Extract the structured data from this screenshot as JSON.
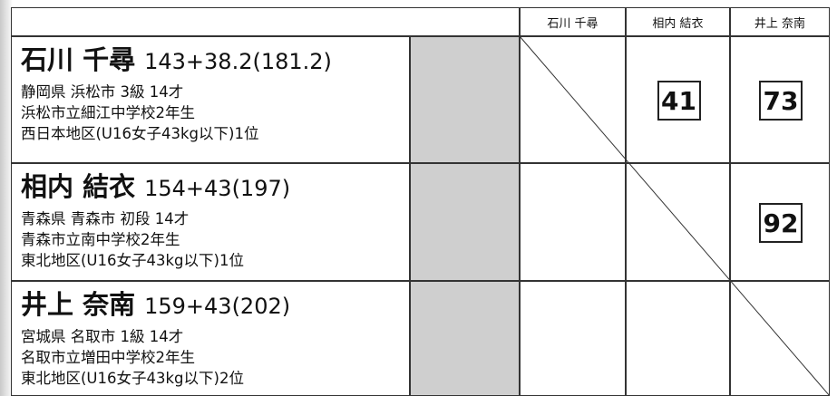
{
  "header": {
    "columns": [
      "石川 千尋",
      "相内 結衣",
      "井上 奈南"
    ]
  },
  "rows": [
    {
      "name": "石川 千尋",
      "record": "143+38.2(181.2)",
      "lines": [
        "静岡県 浜松市 3級 14才",
        "浜松市立細江中学校2年生",
        "西日本地区(U16女子43kg以下)1位"
      ],
      "scores": [
        null,
        41,
        73
      ]
    },
    {
      "name": "相内 結衣",
      "record": "154+43(197)",
      "lines": [
        "青森県 青森市 初段 14才",
        "青森市立南中学校2年生",
        "東北地区(U16女子43kg以下)1位"
      ],
      "scores": [
        null,
        null,
        92
      ]
    },
    {
      "name": "井上 奈南",
      "record": "159+43(202)",
      "lines": [
        "宮城県 名取市 1級 14才",
        "名取市立増田中学校2年生",
        "東北地区(U16女子43kg以下)2位"
      ],
      "scores": [
        null,
        null,
        null
      ]
    }
  ]
}
